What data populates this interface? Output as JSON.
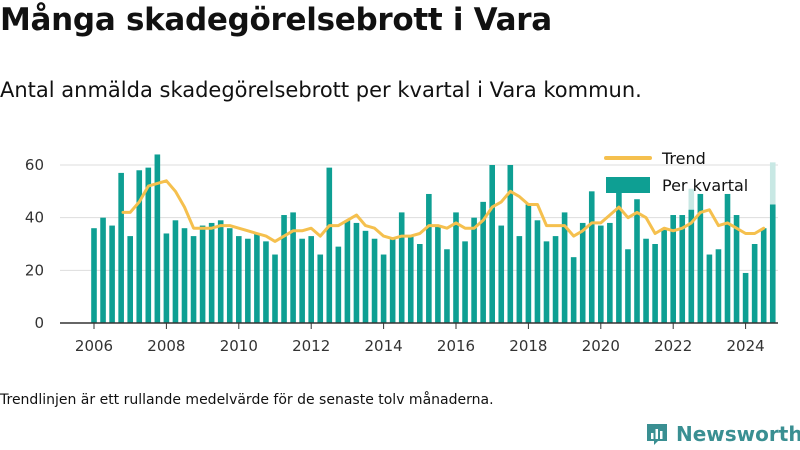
{
  "title": "Många skadegörelsebrott i Vara",
  "subtitle": "Antal anmälda skadegörelsebrott per kvartal i Vara kommun.",
  "note": "Trendlinjen är ett rullande medelvärde för de senaste tolv månaderna.",
  "brand": {
    "name": "Newsworthy",
    "icon": "bar-chart-logo-icon",
    "color": "#3a8f92"
  },
  "colors": {
    "bar": "#0e9f93",
    "bar_faded": "#c8e8e4",
    "trend": "#f5c04e",
    "grid": "#dddddd",
    "axis": "#333333"
  },
  "chart_data": {
    "type": "bar",
    "title": "Många skadegörelsebrott i Vara",
    "xlabel": "",
    "ylabel": "",
    "ylim": [
      0,
      65
    ],
    "yticks": [
      0,
      20,
      40,
      60
    ],
    "xticks": [
      "2006",
      "2008",
      "2010",
      "2012",
      "2014",
      "2016",
      "2018",
      "2020",
      "2022",
      "2024"
    ],
    "grid": true,
    "legend_position": "top-right",
    "start_year": 2006,
    "series": [
      {
        "name": "Per kvartal",
        "type": "bar",
        "values": [
          36,
          40,
          37,
          57,
          33,
          58,
          59,
          64,
          34,
          39,
          36,
          33,
          37,
          38,
          39,
          36,
          33,
          32,
          34,
          31,
          26,
          41,
          42,
          32,
          33,
          26,
          59,
          29,
          39,
          38,
          35,
          32,
          26,
          32,
          42,
          33,
          30,
          49,
          37,
          28,
          42,
          31,
          40,
          46,
          60,
          37,
          60,
          33,
          45,
          39,
          31,
          33,
          42,
          25,
          38,
          50,
          37,
          38,
          53,
          28,
          47,
          32,
          30,
          36,
          41,
          41,
          43,
          49,
          26,
          28,
          49,
          41,
          19,
          30,
          36,
          45
        ],
        "faded_values": [
          0,
          0,
          0,
          0,
          0,
          0,
          0,
          0,
          0,
          0,
          0,
          0,
          0,
          0,
          0,
          0,
          0,
          0,
          0,
          0,
          0,
          0,
          0,
          0,
          0,
          0,
          0,
          0,
          0,
          0,
          0,
          0,
          0,
          0,
          0,
          0,
          0,
          0,
          0,
          0,
          0,
          0,
          0,
          0,
          0,
          0,
          0,
          0,
          0,
          0,
          0,
          0,
          0,
          0,
          0,
          0,
          0,
          0,
          0,
          0,
          0,
          0,
          0,
          0,
          0,
          0,
          51,
          0,
          0,
          0,
          0,
          0,
          0,
          0,
          0,
          61
        ]
      },
      {
        "name": "Trend",
        "type": "line",
        "x": [
          2006.8,
          2007.0,
          2007.25,
          2007.5,
          2007.75,
          2008.0,
          2008.25,
          2008.5,
          2008.75,
          2009.0,
          2009.25,
          2009.5,
          2009.75,
          2010.0,
          2010.25,
          2010.5,
          2010.75,
          2011.0,
          2011.25,
          2011.5,
          2011.75,
          2012.0,
          2012.25,
          2012.5,
          2012.75,
          2013.0,
          2013.25,
          2013.5,
          2013.75,
          2014.0,
          2014.25,
          2014.5,
          2014.75,
          2015.0,
          2015.25,
          2015.5,
          2015.75,
          2016.0,
          2016.25,
          2016.5,
          2016.75,
          2017.0,
          2017.25,
          2017.5,
          2017.75,
          2018.0,
          2018.25,
          2018.5,
          2018.75,
          2019.0,
          2019.25,
          2019.5,
          2019.75,
          2020.0,
          2020.25,
          2020.5,
          2020.75,
          2021.0,
          2021.25,
          2021.5,
          2021.75,
          2022.0,
          2022.25,
          2022.5,
          2022.75,
          2023.0,
          2023.25,
          2023.5,
          2023.75,
          2024.0,
          2024.25,
          2024.5
        ],
        "values": [
          42,
          42,
          46,
          52,
          53,
          54,
          50,
          44,
          36,
          36,
          36,
          37,
          37,
          36,
          35,
          34,
          33,
          31,
          33,
          35,
          35,
          36,
          33,
          37,
          37,
          39,
          41,
          37,
          36,
          33,
          32,
          33,
          33,
          34,
          37,
          37,
          36,
          38,
          36,
          36,
          39,
          44,
          46,
          50,
          48,
          45,
          45,
          37,
          37,
          37,
          33,
          35,
          38,
          38,
          41,
          44,
          40,
          42,
          40,
          34,
          36,
          35,
          36,
          38,
          42,
          43,
          37,
          38,
          36,
          34,
          34,
          36
        ]
      }
    ]
  }
}
